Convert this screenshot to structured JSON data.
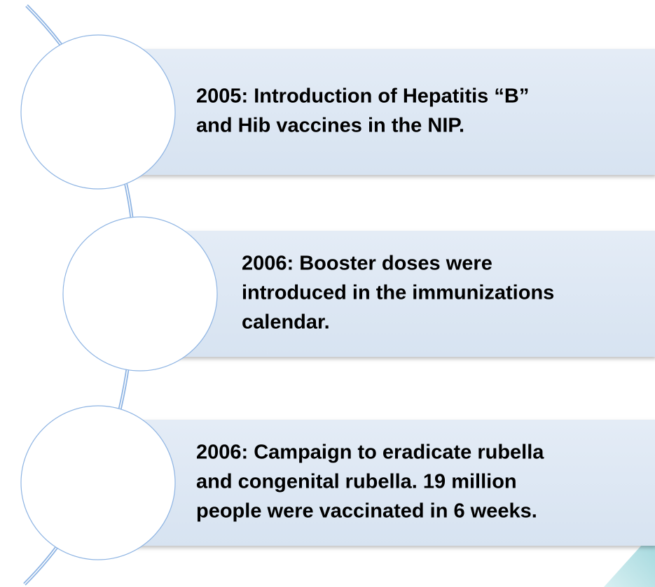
{
  "items": [
    {
      "lines": [
        "2005: Introduction of Hepatitis “B”",
        "and Hib vaccines in the NIP."
      ]
    },
    {
      "lines": [
        "2006: Booster doses were",
        "introduced in the immunizations",
        "calendar."
      ]
    },
    {
      "lines": [
        "2006: Campaign to eradicate rubella",
        "and congenital rubella. 19 million",
        "people were vaccinated in 6 weeks."
      ]
    }
  ]
}
